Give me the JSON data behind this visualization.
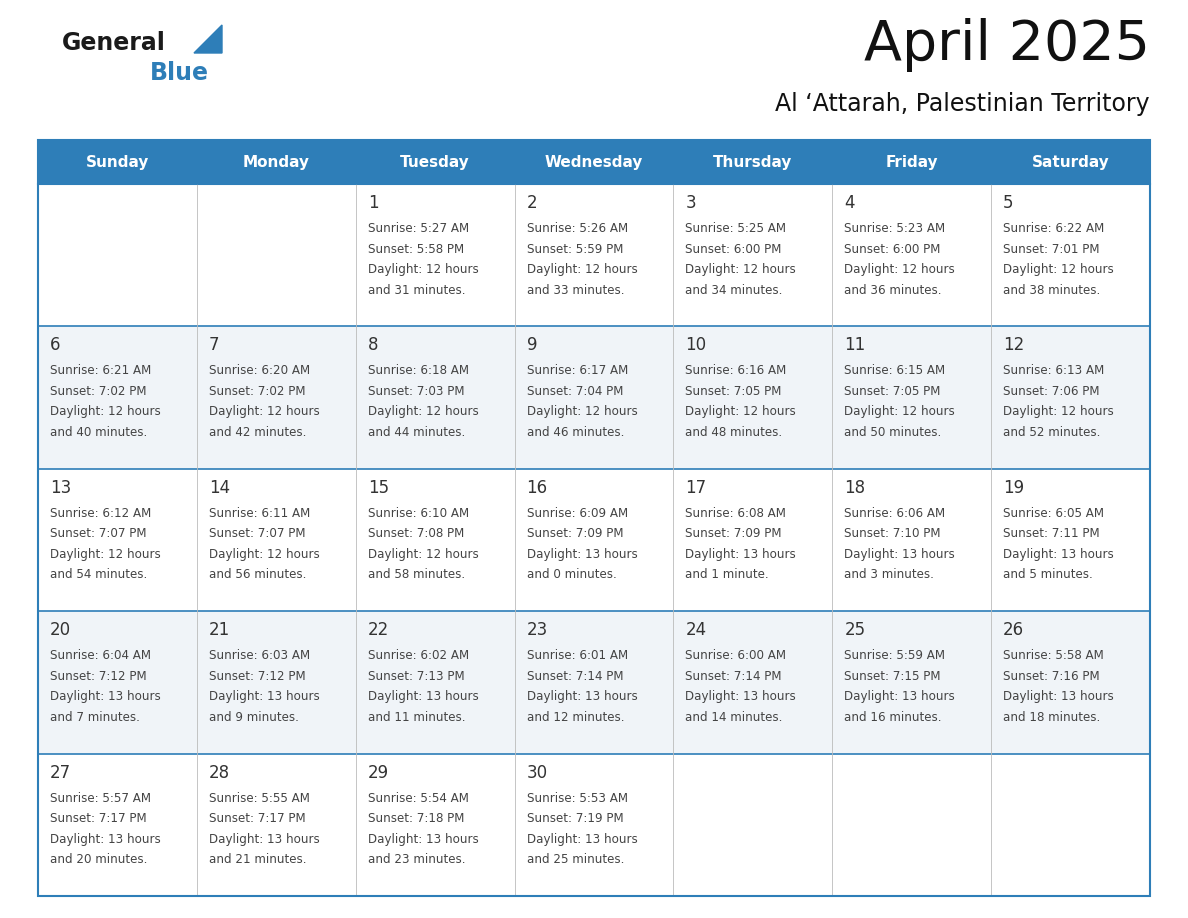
{
  "title": "April 2025",
  "subtitle": "Al ‘Attarah, Palestinian Territory",
  "days_of_week": [
    "Sunday",
    "Monday",
    "Tuesday",
    "Wednesday",
    "Thursday",
    "Friday",
    "Saturday"
  ],
  "header_bg": "#2E7EB8",
  "header_text_color": "#FFFFFF",
  "row_bg_even": "#FFFFFF",
  "row_bg_odd": "#F0F4F8",
  "border_color": "#2E7EB8",
  "cell_border_color": "#BBBBBB",
  "text_color": "#444444",
  "day_num_color": "#333333",
  "calendar_data": [
    [
      null,
      null,
      {
        "day": 1,
        "sunrise": "5:27 AM",
        "sunset": "5:58 PM",
        "daylight": "12 hours\nand 31 minutes."
      },
      {
        "day": 2,
        "sunrise": "5:26 AM",
        "sunset": "5:59 PM",
        "daylight": "12 hours\nand 33 minutes."
      },
      {
        "day": 3,
        "sunrise": "5:25 AM",
        "sunset": "6:00 PM",
        "daylight": "12 hours\nand 34 minutes."
      },
      {
        "day": 4,
        "sunrise": "5:23 AM",
        "sunset": "6:00 PM",
        "daylight": "12 hours\nand 36 minutes."
      },
      {
        "day": 5,
        "sunrise": "6:22 AM",
        "sunset": "7:01 PM",
        "daylight": "12 hours\nand 38 minutes."
      }
    ],
    [
      {
        "day": 6,
        "sunrise": "6:21 AM",
        "sunset": "7:02 PM",
        "daylight": "12 hours\nand 40 minutes."
      },
      {
        "day": 7,
        "sunrise": "6:20 AM",
        "sunset": "7:02 PM",
        "daylight": "12 hours\nand 42 minutes."
      },
      {
        "day": 8,
        "sunrise": "6:18 AM",
        "sunset": "7:03 PM",
        "daylight": "12 hours\nand 44 minutes."
      },
      {
        "day": 9,
        "sunrise": "6:17 AM",
        "sunset": "7:04 PM",
        "daylight": "12 hours\nand 46 minutes."
      },
      {
        "day": 10,
        "sunrise": "6:16 AM",
        "sunset": "7:05 PM",
        "daylight": "12 hours\nand 48 minutes."
      },
      {
        "day": 11,
        "sunrise": "6:15 AM",
        "sunset": "7:05 PM",
        "daylight": "12 hours\nand 50 minutes."
      },
      {
        "day": 12,
        "sunrise": "6:13 AM",
        "sunset": "7:06 PM",
        "daylight": "12 hours\nand 52 minutes."
      }
    ],
    [
      {
        "day": 13,
        "sunrise": "6:12 AM",
        "sunset": "7:07 PM",
        "daylight": "12 hours\nand 54 minutes."
      },
      {
        "day": 14,
        "sunrise": "6:11 AM",
        "sunset": "7:07 PM",
        "daylight": "12 hours\nand 56 minutes."
      },
      {
        "day": 15,
        "sunrise": "6:10 AM",
        "sunset": "7:08 PM",
        "daylight": "12 hours\nand 58 minutes."
      },
      {
        "day": 16,
        "sunrise": "6:09 AM",
        "sunset": "7:09 PM",
        "daylight": "13 hours\nand 0 minutes."
      },
      {
        "day": 17,
        "sunrise": "6:08 AM",
        "sunset": "7:09 PM",
        "daylight": "13 hours\nand 1 minute."
      },
      {
        "day": 18,
        "sunrise": "6:06 AM",
        "sunset": "7:10 PM",
        "daylight": "13 hours\nand 3 minutes."
      },
      {
        "day": 19,
        "sunrise": "6:05 AM",
        "sunset": "7:11 PM",
        "daylight": "13 hours\nand 5 minutes."
      }
    ],
    [
      {
        "day": 20,
        "sunrise": "6:04 AM",
        "sunset": "7:12 PM",
        "daylight": "13 hours\nand 7 minutes."
      },
      {
        "day": 21,
        "sunrise": "6:03 AM",
        "sunset": "7:12 PM",
        "daylight": "13 hours\nand 9 minutes."
      },
      {
        "day": 22,
        "sunrise": "6:02 AM",
        "sunset": "7:13 PM",
        "daylight": "13 hours\nand 11 minutes."
      },
      {
        "day": 23,
        "sunrise": "6:01 AM",
        "sunset": "7:14 PM",
        "daylight": "13 hours\nand 12 minutes."
      },
      {
        "day": 24,
        "sunrise": "6:00 AM",
        "sunset": "7:14 PM",
        "daylight": "13 hours\nand 14 minutes."
      },
      {
        "day": 25,
        "sunrise": "5:59 AM",
        "sunset": "7:15 PM",
        "daylight": "13 hours\nand 16 minutes."
      },
      {
        "day": 26,
        "sunrise": "5:58 AM",
        "sunset": "7:16 PM",
        "daylight": "13 hours\nand 18 minutes."
      }
    ],
    [
      {
        "day": 27,
        "sunrise": "5:57 AM",
        "sunset": "7:17 PM",
        "daylight": "13 hours\nand 20 minutes."
      },
      {
        "day": 28,
        "sunrise": "5:55 AM",
        "sunset": "7:17 PM",
        "daylight": "13 hours\nand 21 minutes."
      },
      {
        "day": 29,
        "sunrise": "5:54 AM",
        "sunset": "7:18 PM",
        "daylight": "13 hours\nand 23 minutes."
      },
      {
        "day": 30,
        "sunrise": "5:53 AM",
        "sunset": "7:19 PM",
        "daylight": "13 hours\nand 25 minutes."
      },
      null,
      null,
      null
    ]
  ],
  "logo_general_color": "#1a1a1a",
  "logo_blue_color": "#2E7EB8",
  "figsize": [
    11.88,
    9.18
  ],
  "dpi": 100
}
